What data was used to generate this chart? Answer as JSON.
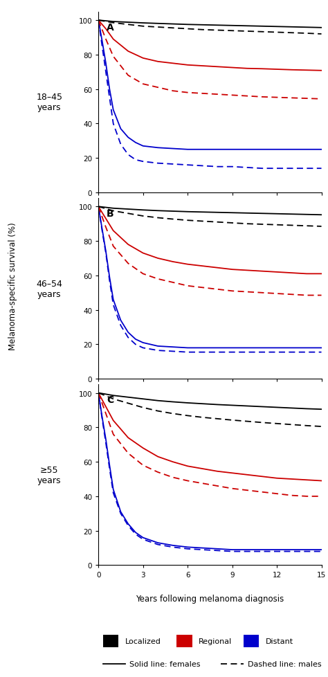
{
  "panels": [
    {
      "label": "A",
      "age_label": "18–45\nyears",
      "curves": {
        "localized_female": {
          "x": [
            0,
            1,
            2,
            3,
            4,
            5,
            6,
            7,
            8,
            9,
            10,
            11,
            12,
            13,
            14,
            15
          ],
          "y": [
            100,
            99.2,
            98.8,
            98.4,
            98.1,
            97.8,
            97.5,
            97.3,
            97.1,
            96.9,
            96.7,
            96.5,
            96.3,
            96.1,
            95.9,
            95.7
          ]
        },
        "localized_male": {
          "x": [
            0,
            1,
            2,
            3,
            4,
            5,
            6,
            7,
            8,
            9,
            10,
            11,
            12,
            13,
            14,
            15
          ],
          "y": [
            100,
            98.5,
            97.5,
            96.5,
            96.0,
            95.5,
            95.0,
            94.5,
            94.2,
            93.9,
            93.6,
            93.3,
            93.0,
            92.7,
            92.4,
            92.0
          ]
        },
        "regional_female": {
          "x": [
            0,
            0.5,
            1,
            2,
            3,
            4,
            5,
            6,
            7,
            8,
            9,
            10,
            11,
            12,
            13,
            14,
            15
          ],
          "y": [
            100,
            95,
            89,
            82,
            78,
            76,
            75,
            74,
            73.5,
            73,
            72.5,
            72,
            71.8,
            71.5,
            71.2,
            71.0,
            70.8
          ]
        },
        "regional_male": {
          "x": [
            0,
            0.5,
            1,
            2,
            3,
            4,
            5,
            6,
            7,
            8,
            9,
            10,
            11,
            12,
            13,
            14,
            15
          ],
          "y": [
            100,
            89,
            79,
            68,
            63,
            61,
            59,
            58,
            57.5,
            57,
            56.5,
            56,
            55.5,
            55.2,
            54.9,
            54.6,
            54.3
          ]
        },
        "distant_female": {
          "x": [
            0,
            0.25,
            0.5,
            0.75,
            1,
            1.5,
            2,
            2.5,
            3,
            4,
            5,
            6,
            7,
            8,
            9,
            10,
            11,
            12,
            13,
            14,
            15
          ],
          "y": [
            100,
            88,
            75,
            60,
            48,
            37,
            32,
            29,
            27,
            26,
            25.5,
            25,
            25,
            25,
            25,
            25,
            25,
            25,
            25,
            25,
            25
          ]
        },
        "distant_male": {
          "x": [
            0,
            0.25,
            0.5,
            0.75,
            1,
            1.5,
            2,
            2.5,
            3,
            4,
            5,
            6,
            7,
            8,
            9,
            10,
            11,
            12,
            13,
            14,
            15
          ],
          "y": [
            100,
            85,
            70,
            55,
            40,
            28,
            22,
            19,
            18,
            17,
            16.5,
            16,
            15.5,
            15,
            15,
            14.5,
            14,
            14,
            14,
            14,
            14
          ]
        }
      }
    },
    {
      "label": "B",
      "age_label": "46–54\nyears",
      "curves": {
        "localized_female": {
          "x": [
            0,
            1,
            2,
            3,
            4,
            5,
            6,
            7,
            8,
            9,
            10,
            11,
            12,
            13,
            14,
            15
          ],
          "y": [
            100,
            99.0,
            98.5,
            98.0,
            97.6,
            97.3,
            97.0,
            96.8,
            96.6,
            96.4,
            96.2,
            96.0,
            95.8,
            95.6,
            95.4,
            95.2
          ]
        },
        "localized_male": {
          "x": [
            0,
            1,
            2,
            3,
            4,
            5,
            6,
            7,
            8,
            9,
            10,
            11,
            12,
            13,
            14,
            15
          ],
          "y": [
            100,
            97.5,
            96.0,
            94.5,
            93.5,
            92.7,
            92.0,
            91.5,
            91.0,
            90.5,
            90.0,
            89.7,
            89.4,
            89.1,
            88.8,
            88.5
          ]
        },
        "regional_female": {
          "x": [
            0,
            0.5,
            1,
            2,
            3,
            4,
            5,
            6,
            7,
            8,
            9,
            10,
            11,
            12,
            13,
            14,
            15
          ],
          "y": [
            100,
            93,
            86,
            78,
            73,
            70,
            68,
            66.5,
            65.5,
            64.5,
            63.5,
            63,
            62.5,
            62,
            61.5,
            61,
            61
          ]
        },
        "regional_male": {
          "x": [
            0,
            0.5,
            1,
            2,
            3,
            4,
            5,
            6,
            7,
            8,
            9,
            10,
            11,
            12,
            13,
            14,
            15
          ],
          "y": [
            100,
            88,
            77,
            67,
            61,
            58,
            56,
            54,
            53,
            52,
            51,
            50.5,
            50,
            49.5,
            49,
            48.5,
            48.5
          ]
        },
        "distant_female": {
          "x": [
            0,
            0.25,
            0.5,
            0.75,
            1,
            1.5,
            2,
            2.5,
            3,
            4,
            5,
            6,
            7,
            8,
            9,
            10,
            11,
            12,
            13,
            14,
            15
          ],
          "y": [
            100,
            87,
            74,
            59,
            46,
            34,
            27,
            23,
            21,
            19,
            18.5,
            18,
            18,
            18,
            18,
            18,
            18,
            18,
            18,
            18,
            18
          ]
        },
        "distant_male": {
          "x": [
            0,
            0.25,
            0.5,
            0.75,
            1,
            1.5,
            2,
            2.5,
            3,
            4,
            5,
            6,
            7,
            8,
            9,
            10,
            11,
            12,
            13,
            14,
            15
          ],
          "y": [
            100,
            86,
            73,
            57,
            43,
            31,
            24,
            20,
            18,
            16.5,
            16,
            15.5,
            15.5,
            15.5,
            15.5,
            15.5,
            15.5,
            15.5,
            15.5,
            15.5,
            15.5
          ]
        }
      }
    },
    {
      "label": "C",
      "age_label": "≥55\nyears",
      "curves": {
        "localized_female": {
          "x": [
            0,
            1,
            2,
            3,
            4,
            5,
            6,
            7,
            8,
            9,
            10,
            11,
            12,
            13,
            14,
            15
          ],
          "y": [
            100,
            98.5,
            97.5,
            96.5,
            95.5,
            94.8,
            94.2,
            93.7,
            93.2,
            92.8,
            92.4,
            92.0,
            91.6,
            91.2,
            90.8,
            90.5
          ]
        },
        "localized_male": {
          "x": [
            0,
            1,
            2,
            3,
            4,
            5,
            6,
            7,
            8,
            9,
            10,
            11,
            12,
            13,
            14,
            15
          ],
          "y": [
            100,
            96.5,
            94.0,
            91.5,
            89.5,
            88.0,
            86.8,
            85.8,
            85.0,
            84.2,
            83.5,
            82.8,
            82.2,
            81.6,
            81.0,
            80.5
          ]
        },
        "regional_female": {
          "x": [
            0,
            0.5,
            1,
            2,
            3,
            4,
            5,
            6,
            7,
            8,
            9,
            10,
            11,
            12,
            13,
            14,
            15
          ],
          "y": [
            100,
            92,
            84,
            74,
            68,
            63,
            60,
            57.5,
            56,
            54.5,
            53.5,
            52.5,
            51.5,
            50.5,
            50,
            49.5,
            49
          ]
        },
        "regional_male": {
          "x": [
            0,
            0.5,
            1,
            2,
            3,
            4,
            5,
            6,
            7,
            8,
            9,
            10,
            11,
            12,
            13,
            14,
            15
          ],
          "y": [
            100,
            88,
            76,
            65,
            58,
            54,
            51,
            49,
            47.5,
            46,
            44.5,
            43.5,
            42.5,
            41.5,
            40.5,
            40,
            40
          ]
        },
        "distant_female": {
          "x": [
            0,
            0.25,
            0.5,
            0.75,
            1,
            1.5,
            2,
            2.5,
            3,
            4,
            5,
            6,
            7,
            8,
            9,
            10,
            11,
            12,
            13,
            14,
            15
          ],
          "y": [
            100,
            86,
            73,
            58,
            44,
            31,
            24,
            19,
            16,
            13,
            11.5,
            10.5,
            10,
            9.5,
            9,
            9,
            9,
            9,
            9,
            9,
            9
          ]
        },
        "distant_male": {
          "x": [
            0,
            0.25,
            0.5,
            0.75,
            1,
            1.5,
            2,
            2.5,
            3,
            4,
            5,
            6,
            7,
            8,
            9,
            10,
            11,
            12,
            13,
            14,
            15
          ],
          "y": [
            100,
            85,
            71,
            56,
            42,
            30,
            23,
            18,
            15,
            12,
            10.5,
            9.5,
            9,
            8.5,
            8,
            8,
            8,
            8,
            8,
            8,
            8
          ]
        }
      }
    }
  ],
  "colors": {
    "localized": "#000000",
    "regional": "#cc0000",
    "distant": "#0000cc"
  },
  "ylabel": "Melanoma-specific survival (%)",
  "xlabel": "Years following melanoma diagnosis",
  "yticks": [
    0,
    20,
    40,
    60,
    80,
    100
  ],
  "xticks": [
    0,
    3,
    6,
    9,
    12,
    15
  ],
  "xlim": [
    0,
    15
  ],
  "ylim": [
    0,
    105
  ],
  "legend_items": [
    {
      "label": "Localized",
      "color": "#000000"
    },
    {
      "label": "Regional",
      "color": "#cc0000"
    },
    {
      "label": "Distant",
      "color": "#0000cc"
    }
  ],
  "legend_line1": "Solid line: females",
  "legend_line2": "Dashed line: males"
}
